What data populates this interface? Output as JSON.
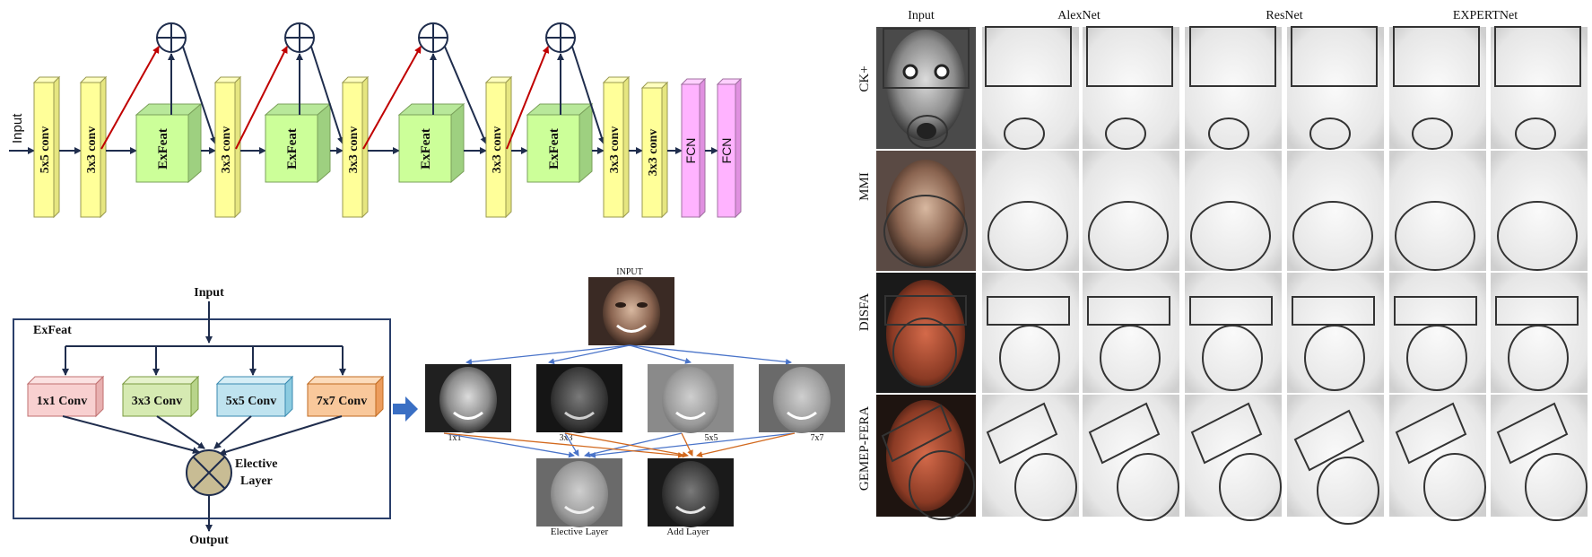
{
  "pipeline": {
    "input_label": "Input",
    "layers": [
      "5x5 conv",
      "3x3 conv",
      "ExFeat",
      "3x3 conv",
      "ExFeat",
      "3x3 conv",
      "ExFeat",
      "3x3 conv",
      "ExFeat",
      "3x3 conv",
      "3x3 conv",
      "FCN",
      "FCN"
    ]
  },
  "exfeat_block": {
    "input_label": "Input",
    "title": "ExFeat",
    "branches": [
      "1x1 Conv",
      "3x3 Conv",
      "5x5 Conv",
      "7x7 Conv"
    ],
    "elective_label_1": "Elective",
    "elective_label_2": "Layer",
    "output_label": "Output"
  },
  "feature_maps": {
    "input_label": "INPUT",
    "branch_labels": [
      "1x1",
      "3x3",
      "5x5",
      "7x7"
    ],
    "elective_label": "Elective Layer",
    "add_label": "Add Layer"
  },
  "comparison": {
    "column_headers": [
      "Input",
      "AlexNet",
      "ResNet",
      "EXPERTNet"
    ],
    "row_labels": [
      "CK+",
      "MMI",
      "DISFA",
      "GEMEP-FERA"
    ]
  },
  "colors": {
    "conv_fill": "#ffff99",
    "exfeat_fill": "#ccff99",
    "fcn_fill": "#ffb3ff",
    "skip_arrow": "#c00000",
    "arrow": "#1f2d4d",
    "conv1_fill": "#f8d0d0",
    "conv3_fill": "#d6eab2",
    "conv5_fill": "#bfe3ef",
    "conv7_fill": "#f9c89b",
    "elective_fill": "#c8bc94",
    "feature_line_blue": "#4a74c9",
    "feature_line_orange": "#d2691e"
  }
}
